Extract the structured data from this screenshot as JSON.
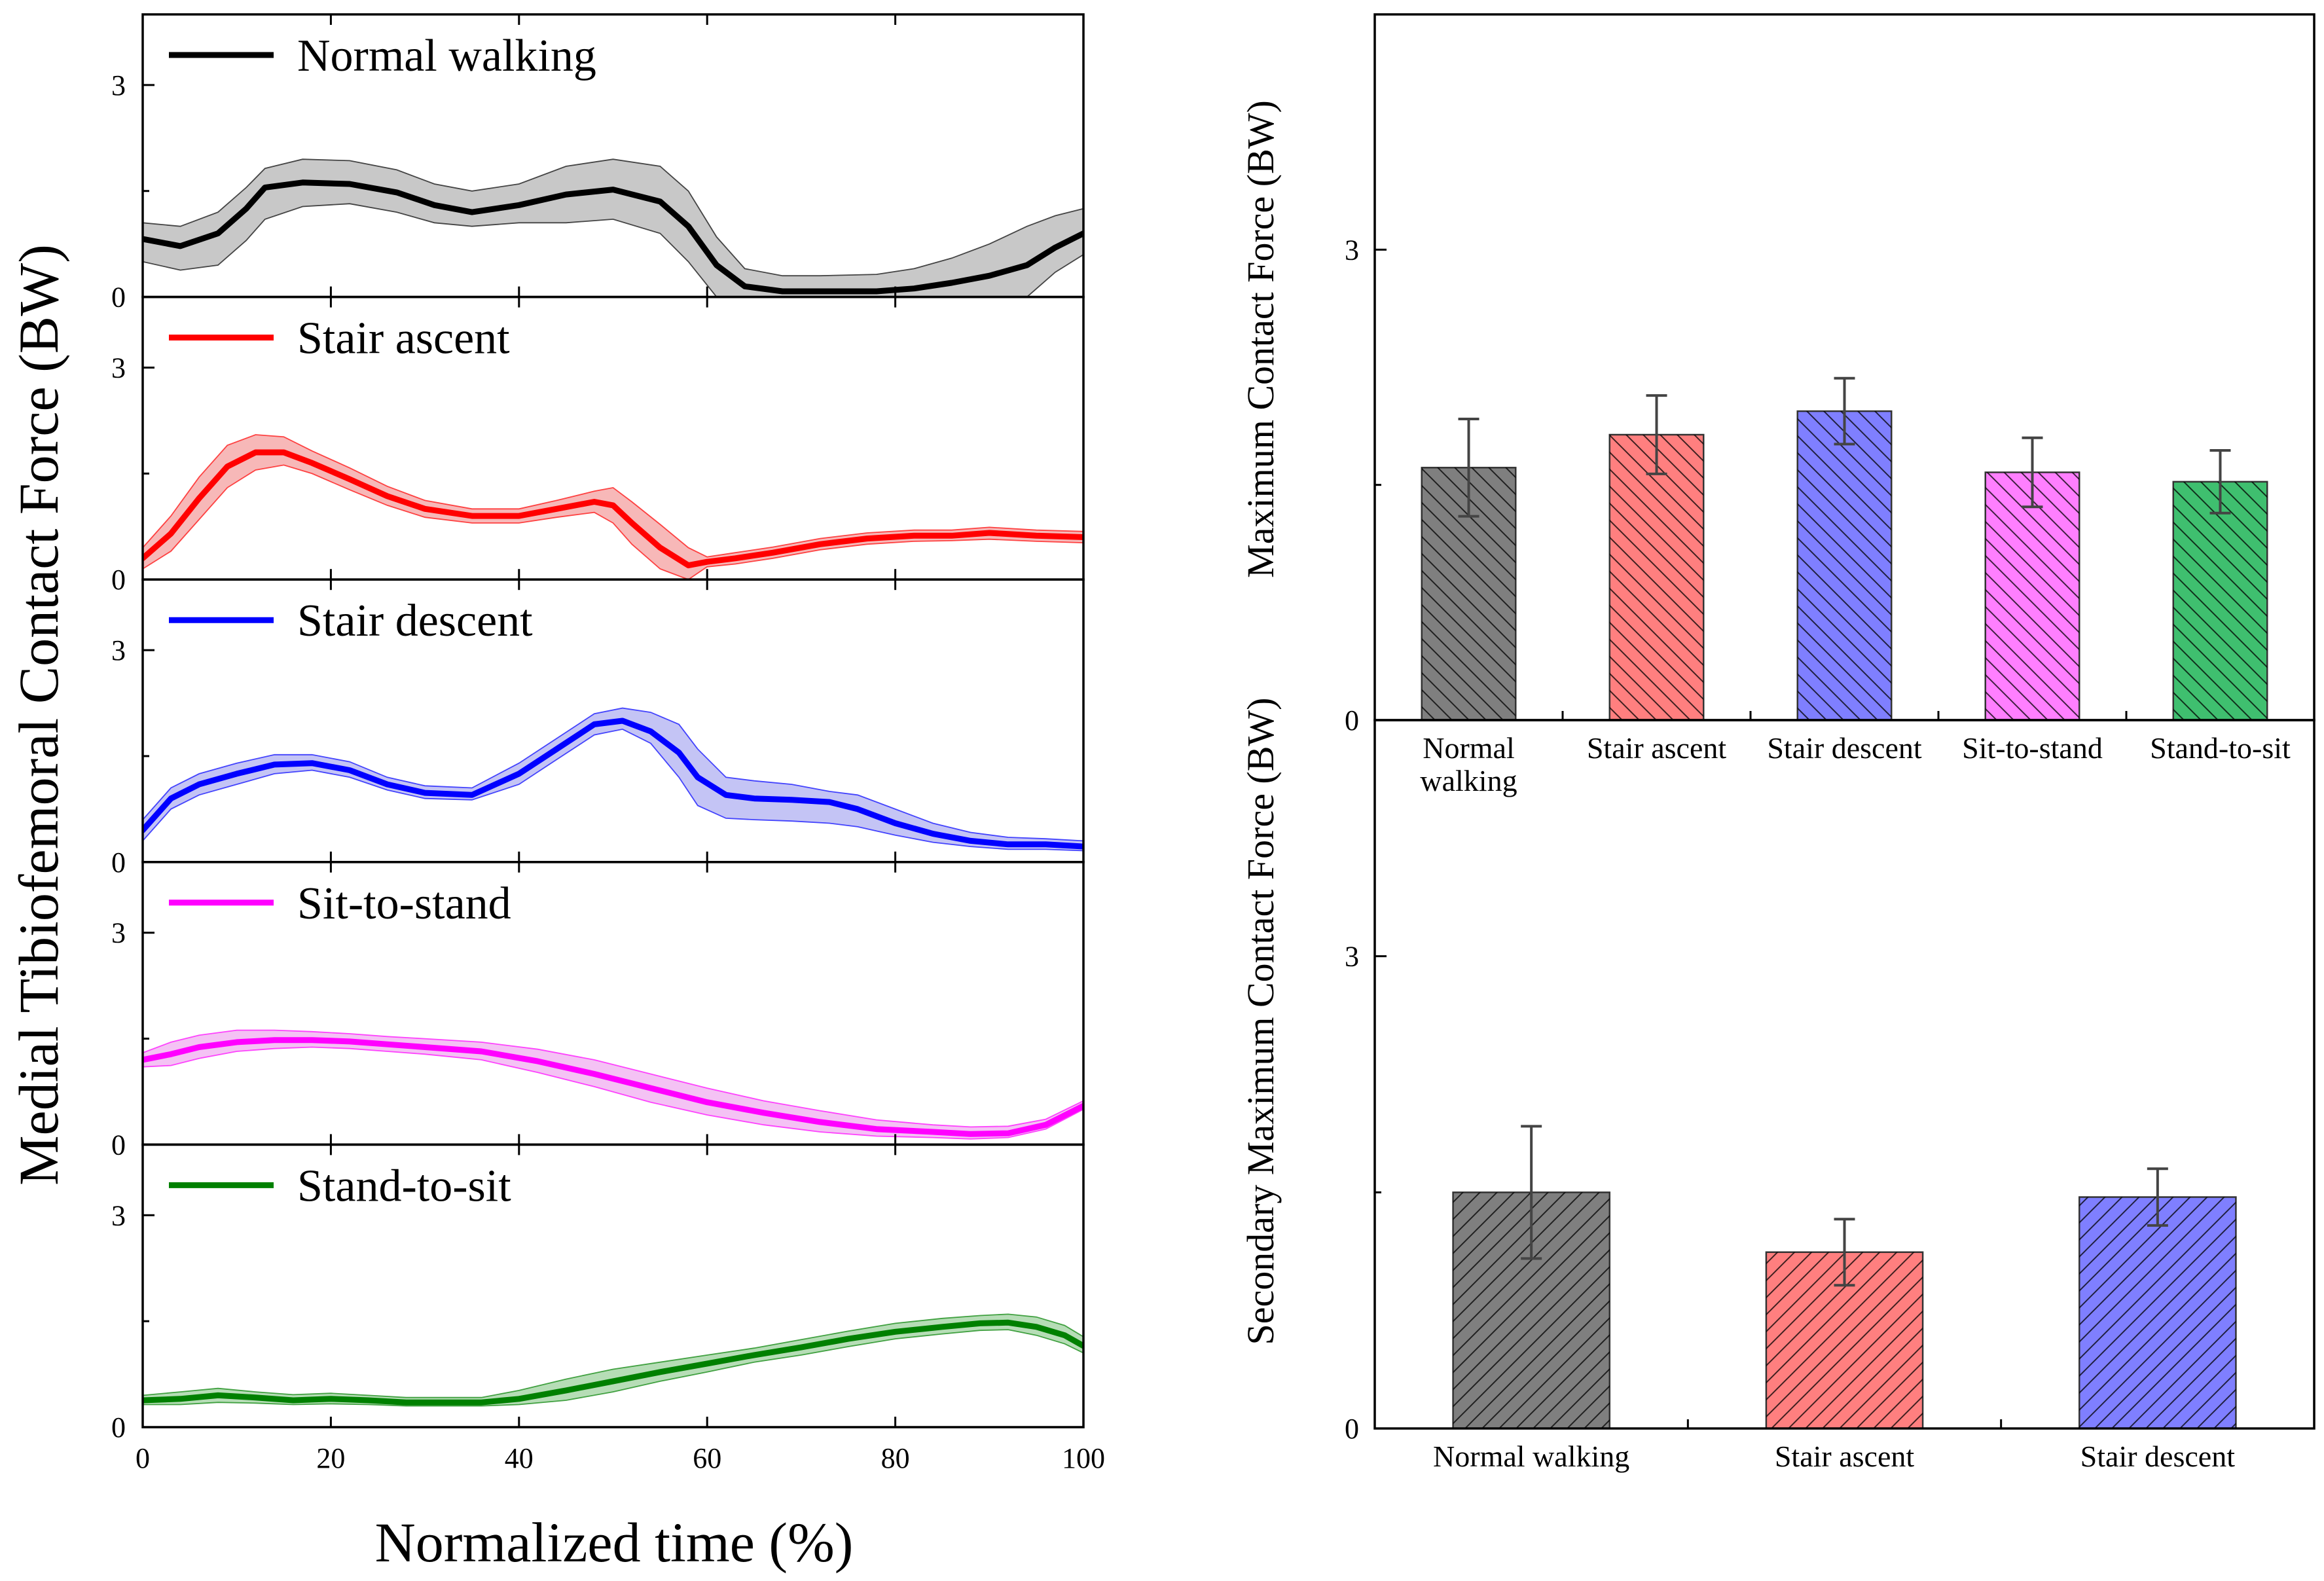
{
  "chart_data": [
    {
      "type": "line",
      "id": "time-series-panels",
      "ylabel": "Medial Tibiofemoral Contact Force (BW)",
      "xlabel": "Normalized time (%)",
      "xlim": [
        0,
        100
      ],
      "xticks": [
        0,
        20,
        40,
        60,
        80,
        100
      ],
      "ylim": [
        0,
        4
      ],
      "yticks": [
        0,
        3
      ],
      "panels": [
        {
          "name": "Normal walking",
          "color": "#000000",
          "fill": "#c8c8c8",
          "x": [
            0,
            4,
            8,
            11,
            13,
            17,
            22,
            27,
            31,
            35,
            40,
            45,
            50,
            55,
            58,
            61,
            64,
            68,
            72,
            78,
            82,
            86,
            90,
            94,
            97,
            100
          ],
          "mean": [
            0.82,
            0.72,
            0.9,
            1.25,
            1.55,
            1.62,
            1.6,
            1.48,
            1.3,
            1.2,
            1.3,
            1.45,
            1.52,
            1.35,
            1.0,
            0.45,
            0.15,
            0.08,
            0.08,
            0.08,
            0.12,
            0.2,
            0.3,
            0.45,
            0.7,
            0.9
          ],
          "lower": [
            0.5,
            0.38,
            0.45,
            0.8,
            1.1,
            1.28,
            1.32,
            1.2,
            1.05,
            1.0,
            1.05,
            1.05,
            1.1,
            0.9,
            0.5,
            0.0,
            0.0,
            0.0,
            0.0,
            0.0,
            0.0,
            0.0,
            0.0,
            0.0,
            0.35,
            0.6
          ],
          "upper": [
            1.05,
            1.0,
            1.2,
            1.55,
            1.82,
            1.95,
            1.93,
            1.8,
            1.6,
            1.5,
            1.6,
            1.85,
            1.95,
            1.85,
            1.5,
            0.85,
            0.4,
            0.3,
            0.3,
            0.32,
            0.4,
            0.55,
            0.75,
            1.0,
            1.15,
            1.25
          ]
        },
        {
          "name": "Stair ascent",
          "color": "#ff0000",
          "fill": "#f7b8b8",
          "x": [
            0,
            3,
            6,
            9,
            12,
            15,
            18,
            22,
            26,
            30,
            35,
            40,
            44,
            48,
            50,
            52,
            55,
            58,
            60,
            63,
            67,
            72,
            77,
            82,
            86,
            90,
            95,
            100
          ],
          "mean": [
            0.3,
            0.65,
            1.15,
            1.6,
            1.8,
            1.8,
            1.65,
            1.42,
            1.18,
            1.0,
            0.9,
            0.9,
            1.0,
            1.1,
            1.05,
            0.8,
            0.45,
            0.2,
            0.25,
            0.3,
            0.38,
            0.5,
            0.58,
            0.62,
            0.62,
            0.66,
            0.62,
            0.6
          ],
          "lower": [
            0.15,
            0.4,
            0.85,
            1.3,
            1.55,
            1.62,
            1.5,
            1.27,
            1.05,
            0.88,
            0.8,
            0.8,
            0.88,
            0.95,
            0.8,
            0.5,
            0.15,
            0.0,
            0.18,
            0.22,
            0.3,
            0.42,
            0.5,
            0.54,
            0.55,
            0.57,
            0.54,
            0.52
          ],
          "upper": [
            0.45,
            0.9,
            1.45,
            1.9,
            2.05,
            2.02,
            1.82,
            1.58,
            1.32,
            1.12,
            1.0,
            1.0,
            1.12,
            1.25,
            1.3,
            1.1,
            0.78,
            0.45,
            0.32,
            0.38,
            0.46,
            0.58,
            0.66,
            0.7,
            0.7,
            0.74,
            0.7,
            0.68
          ]
        },
        {
          "name": "Stair descent",
          "color": "#0000ff",
          "fill": "#c4c4f5",
          "x": [
            0,
            3,
            6,
            10,
            14,
            18,
            22,
            26,
            30,
            35,
            40,
            44,
            48,
            51,
            54,
            57,
            59,
            62,
            65,
            69,
            73,
            76,
            80,
            84,
            88,
            92,
            96,
            100
          ],
          "mean": [
            0.45,
            0.9,
            1.1,
            1.25,
            1.38,
            1.4,
            1.3,
            1.1,
            0.98,
            0.95,
            1.25,
            1.6,
            1.95,
            2.0,
            1.85,
            1.55,
            1.2,
            0.95,
            0.9,
            0.88,
            0.85,
            0.75,
            0.55,
            0.4,
            0.3,
            0.25,
            0.25,
            0.22
          ],
          "lower": [
            0.3,
            0.75,
            0.95,
            1.1,
            1.25,
            1.3,
            1.2,
            1.02,
            0.9,
            0.88,
            1.1,
            1.45,
            1.8,
            1.88,
            1.68,
            1.2,
            0.8,
            0.62,
            0.6,
            0.58,
            0.55,
            0.5,
            0.38,
            0.28,
            0.22,
            0.18,
            0.18,
            0.16
          ],
          "upper": [
            0.6,
            1.05,
            1.25,
            1.4,
            1.52,
            1.52,
            1.42,
            1.2,
            1.08,
            1.05,
            1.4,
            1.75,
            2.1,
            2.18,
            2.12,
            1.95,
            1.6,
            1.2,
            1.15,
            1.1,
            1.0,
            0.95,
            0.75,
            0.55,
            0.42,
            0.35,
            0.33,
            0.3
          ]
        },
        {
          "name": "Sit-to-stand",
          "color": "#ff00ff",
          "fill": "#f4c2f4",
          "x": [
            0,
            3,
            6,
            10,
            14,
            18,
            22,
            26,
            30,
            36,
            42,
            48,
            54,
            60,
            66,
            72,
            78,
            84,
            88,
            92,
            96,
            100
          ],
          "mean": [
            1.2,
            1.28,
            1.38,
            1.45,
            1.48,
            1.48,
            1.46,
            1.42,
            1.38,
            1.32,
            1.18,
            1.0,
            0.8,
            0.6,
            0.45,
            0.32,
            0.22,
            0.18,
            0.15,
            0.16,
            0.28,
            0.55
          ],
          "lower": [
            1.1,
            1.12,
            1.22,
            1.32,
            1.36,
            1.38,
            1.36,
            1.32,
            1.28,
            1.2,
            1.02,
            0.82,
            0.6,
            0.42,
            0.28,
            0.18,
            0.12,
            0.1,
            0.08,
            0.1,
            0.22,
            0.5
          ],
          "upper": [
            1.3,
            1.45,
            1.55,
            1.62,
            1.62,
            1.6,
            1.57,
            1.53,
            1.5,
            1.45,
            1.35,
            1.2,
            1.0,
            0.8,
            0.62,
            0.48,
            0.35,
            0.28,
            0.25,
            0.26,
            0.36,
            0.62
          ]
        },
        {
          "name": "Stand-to-sit",
          "color": "#008000",
          "fill": "#b6ddb6",
          "x": [
            0,
            4,
            8,
            12,
            16,
            20,
            24,
            28,
            32,
            36,
            40,
            45,
            50,
            55,
            60,
            65,
            70,
            75,
            80,
            85,
            89,
            92,
            95,
            98,
            100
          ],
          "mean": [
            0.38,
            0.4,
            0.45,
            0.42,
            0.38,
            0.4,
            0.38,
            0.35,
            0.35,
            0.35,
            0.4,
            0.52,
            0.65,
            0.78,
            0.9,
            1.02,
            1.13,
            1.25,
            1.35,
            1.42,
            1.47,
            1.48,
            1.42,
            1.3,
            1.15
          ],
          "lower": [
            0.32,
            0.32,
            0.35,
            0.34,
            0.32,
            0.33,
            0.32,
            0.3,
            0.3,
            0.3,
            0.32,
            0.38,
            0.5,
            0.65,
            0.78,
            0.92,
            1.02,
            1.14,
            1.25,
            1.32,
            1.37,
            1.38,
            1.3,
            1.18,
            1.05
          ],
          "upper": [
            0.45,
            0.5,
            0.55,
            0.5,
            0.46,
            0.48,
            0.45,
            0.42,
            0.42,
            0.42,
            0.52,
            0.68,
            0.82,
            0.92,
            1.02,
            1.12,
            1.24,
            1.36,
            1.47,
            1.54,
            1.58,
            1.6,
            1.56,
            1.44,
            1.28
          ]
        }
      ]
    },
    {
      "type": "bar",
      "id": "maximum-contact-force",
      "ylabel": "Maximum Contact Force (BW)",
      "ylim": [
        0,
        4.5
      ],
      "yticks": [
        0,
        3
      ],
      "categories": [
        "Normal\nwalking",
        "Stair ascent",
        "Stair descent",
        "Sit-to-stand",
        "Stand-to-sit"
      ],
      "values": [
        1.61,
        1.82,
        1.97,
        1.58,
        1.52
      ],
      "errors": [
        0.31,
        0.25,
        0.21,
        0.22,
        0.2
      ],
      "colors": [
        "#7f7f7f",
        "#ff7f7f",
        "#7f7fff",
        "#ff7fff",
        "#3fbf6f"
      ]
    },
    {
      "type": "bar",
      "id": "secondary-maximum-contact-force",
      "ylabel": "Secondary Maximum Contact Force (BW)",
      "ylim": [
        0,
        4.5
      ],
      "yticks": [
        0,
        3
      ],
      "categories": [
        "Normal walking",
        "Stair ascent",
        "Stair descent"
      ],
      "values": [
        1.5,
        1.12,
        1.47
      ],
      "errors": [
        0.42,
        0.21,
        0.18
      ],
      "colors": [
        "#7f7f7f",
        "#ff7f7f",
        "#7f7fff"
      ]
    }
  ]
}
